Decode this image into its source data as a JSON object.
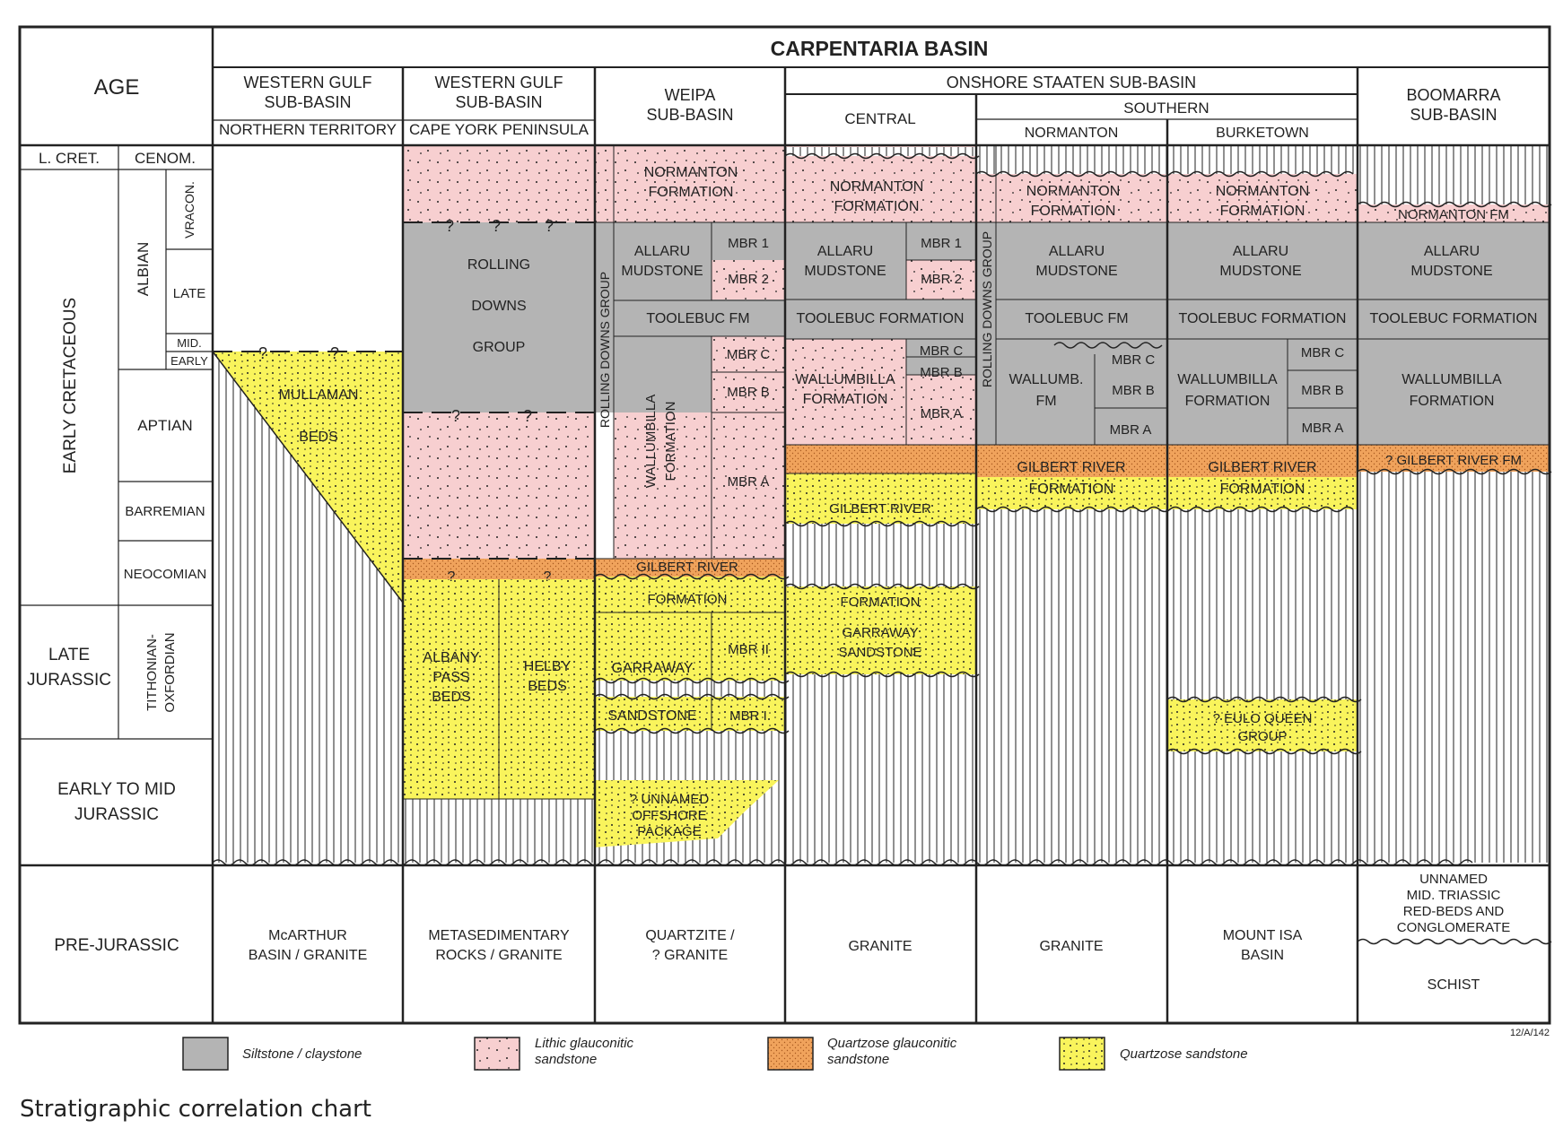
{
  "title": "CARPENTARIA BASIN",
  "caption": "Stratigraphic correlation chart",
  "code": "12/A/142",
  "colors": {
    "siltstone": "#b4b4b4",
    "lithic": "#f7cfd0",
    "orange": "#f0a35c",
    "yellow": "#f9f45c",
    "line": "#222222"
  },
  "age_header": "AGE",
  "ages": {
    "l_cret": "L. CRET.",
    "cenom": "CENOM.",
    "early_cretaceous": "EARLY CRETACEOUS",
    "albian": "ALBIAN",
    "vracon": "VRACON.",
    "late": "LATE",
    "mid": "MID.",
    "early": "EARLY",
    "aptian": "APTIAN",
    "barremian": "BARREMIAN",
    "neocomian": "NEOCOMIAN",
    "late_jurassic": [
      "LATE",
      "JURASSIC"
    ],
    "tithonian": [
      "TITHONIAN-",
      "OXFORDIAN"
    ],
    "early_mid_jurassic": [
      "EARLY TO MID",
      "JURASSIC"
    ],
    "pre_jurassic": "PRE-JURASSIC"
  },
  "headers": {
    "wg_nt": [
      "WESTERN GULF",
      "SUB-BASIN",
      "NORTHERN TERRITORY"
    ],
    "wg_cy": [
      "WESTERN GULF",
      "SUB-BASIN",
      "CAPE YORK PENINSULA"
    ],
    "weipa": [
      "WEIPA",
      "SUB-BASIN"
    ],
    "onshore": "ONSHORE STAATEN SUB-BASIN",
    "central": "CENTRAL",
    "southern": "SOUTHERN",
    "normanton": "NORMANTON",
    "burketown": "BURKETOWN",
    "boomarra": [
      "BOOMARRA",
      "SUB-BASIN"
    ]
  },
  "units": {
    "mullaman": [
      "MULLAMAN",
      "BEDS"
    ],
    "rolling": [
      "ROLLING",
      "DOWNS",
      "GROUP"
    ],
    "albany": [
      "ALBANY",
      "PASS",
      "BEDS"
    ],
    "helby": [
      "HELBY",
      "BEDS"
    ],
    "normanton_fm": [
      "NORMANTON",
      "FORMATION"
    ],
    "normanton_fm_short": "NORMANTON FM",
    "allaru": [
      "ALLARU",
      "MUDSTONE"
    ],
    "mbr1": "MBR 1",
    "mbr2": "MBR 2",
    "toolebuc_fm": "TOOLEBUC FM",
    "toolebuc_formation": "TOOLEBUC FORMATION",
    "rolling_downs_group": "ROLLING DOWNS GROUP",
    "wallumbilla": [
      "WALLUMBILLA",
      "FORMATION"
    ],
    "wallumb": [
      "WALLUMB.",
      "FM"
    ],
    "mbr_a": "MBR A",
    "mbr_b": "MBR B",
    "mbr_c": "MBR C",
    "gilbert_river": "GILBERT RIVER",
    "formation": "FORMATION",
    "gilbert_river_formation": [
      "GILBERT RIVER",
      "FORMATION"
    ],
    "gilbert_q": "? GILBERT RIVER FM",
    "garraway": "GARRAWAY",
    "sandstone": "SANDSTONE",
    "garraway_ss": [
      "GARRAWAY",
      "SANDSTONE"
    ],
    "mbr_ii": "MBR II",
    "mbr_i": "MBR I",
    "unnamed_offshore": [
      "? UNNAMED",
      "OFFSHORE",
      "PACKAGE"
    ],
    "eulo": [
      "? EULO QUEEN",
      "GROUP"
    ],
    "q": "?"
  },
  "basement": {
    "wg_nt": [
      "McARTHUR",
      "BASIN / GRANITE"
    ],
    "wg_cy": [
      "METASEDIMENTARY",
      "ROCKS / GRANITE"
    ],
    "weipa": [
      "QUARTZITE /",
      "? GRANITE"
    ],
    "central": "GRANITE",
    "normanton": "GRANITE",
    "burketown": [
      "MOUNT ISA",
      "BASIN"
    ],
    "boomarra_triassic": [
      "UNNAMED",
      "MID. TRIASSIC",
      "RED-BEDS AND",
      "CONGLOMERATE"
    ],
    "boomarra_schist": "SCHIST"
  },
  "legend": {
    "silt": "Siltstone / claystone",
    "lithic": [
      "Lithic glauconitic",
      "sandstone"
    ],
    "qglauc": [
      "Quartzose glauconitic",
      "sandstone"
    ],
    "qsand": "Quartzose sandstone"
  }
}
